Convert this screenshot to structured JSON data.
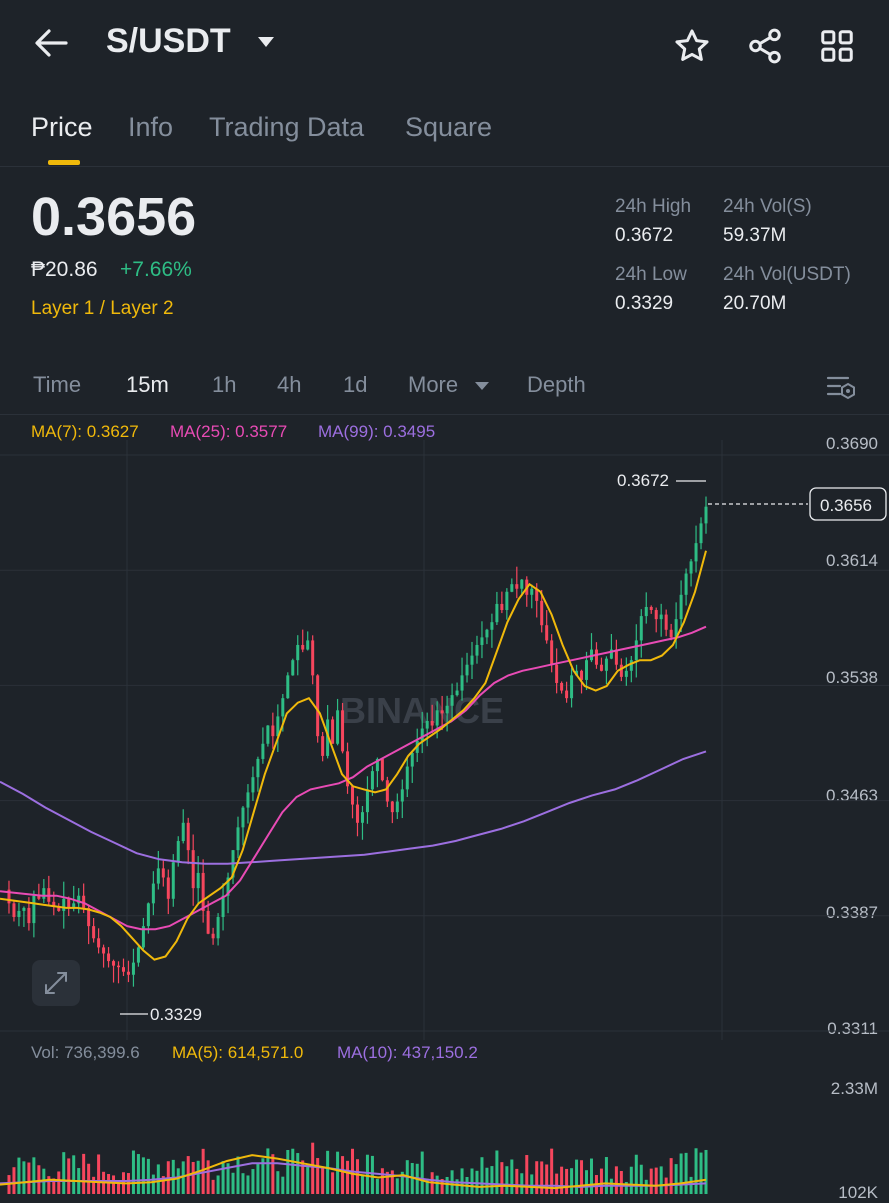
{
  "header": {
    "back_icon": "arrow-left-icon",
    "pair": "S/USDT",
    "dropdown_icon": "caret-down-icon",
    "star_icon": "star-icon",
    "share_icon": "share-icon",
    "grid_icon": "grid-icon"
  },
  "tabs": [
    {
      "label": "Price",
      "active": true
    },
    {
      "label": "Info"
    },
    {
      "label": "Trading Data"
    },
    {
      "label": "Square"
    }
  ],
  "ticker": {
    "last_price": "0.3656",
    "fiat_price": "₱20.86",
    "change_pct": "+7.66%",
    "tag": "Layer 1 / Layer 2",
    "stats": {
      "high_label": "24h High",
      "high_value": "0.3672",
      "vol_s_label": "24h Vol(S)",
      "vol_s_value": "59.37M",
      "low_label": "24h Low",
      "low_value": "0.3329",
      "vol_usdt_label": "24h Vol(USDT)",
      "vol_usdt_value": "20.70M"
    }
  },
  "intervals": {
    "items": [
      "Time",
      "15m",
      "1h",
      "4h",
      "1d",
      "More",
      "Depth"
    ],
    "active": "15m",
    "settings_icon": "chart-settings-icon"
  },
  "indicators": {
    "ma7": "MA(7): 0.3627",
    "ma25": "MA(25): 0.3577",
    "ma99": "MA(99): 0.3495",
    "vol": "Vol: 736,399.6",
    "vol_ma5": "MA(5): 614,571.0",
    "vol_ma10": "MA(10): 437,150.2"
  },
  "watermark": "BINANCE",
  "colors": {
    "up": "#2ebd85",
    "down": "#f6465d",
    "ma7": "#f0b90b",
    "ma25": "#e84bb5",
    "ma99": "#9c6fe0",
    "accent": "#f0b90b"
  },
  "chart_data": {
    "type": "candlestick",
    "interval": "15m",
    "y_axis_ticks": [
      "0.3690",
      "0.3614",
      "0.3538",
      "0.3463",
      "0.3387",
      "0.3311"
    ],
    "ylim": [
      0.3311,
      0.369
    ],
    "last_price_label": "0.3656",
    "high_marker": "0.3672",
    "low_marker": "0.3329",
    "volume_axis_ticks": [
      "2.33M",
      "102K"
    ],
    "volume_ylim": [
      0,
      2330000
    ],
    "price_path": [
      0.3404,
      0.3395,
      0.3386,
      0.339,
      0.3392,
      0.3382,
      0.34,
      0.3398,
      0.3405,
      0.3396,
      0.3393,
      0.339,
      0.3398,
      0.3392,
      0.3395,
      0.34,
      0.3392,
      0.338,
      0.3372,
      0.3366,
      0.3362,
      0.3357,
      0.3354,
      0.3353,
      0.335,
      0.3348,
      0.3356,
      0.3366,
      0.338,
      0.3395,
      0.3408,
      0.3418,
      0.3412,
      0.3398,
      0.3422,
      0.3436,
      0.3448,
      0.343,
      0.3405,
      0.3415,
      0.339,
      0.3375,
      0.3372,
      0.3386,
      0.34,
      0.3412,
      0.343,
      0.3445,
      0.3458,
      0.3468,
      0.3478,
      0.349,
      0.35,
      0.3512,
      0.3505,
      0.3518,
      0.353,
      0.3545,
      0.3555,
      0.3565,
      0.3562,
      0.3568,
      0.3545,
      0.3505,
      0.3492,
      0.3516,
      0.35,
      0.3522,
      0.3495,
      0.3472,
      0.346,
      0.3448,
      0.3455,
      0.347,
      0.3482,
      0.349,
      0.3476,
      0.3462,
      0.3455,
      0.3462,
      0.347,
      0.3485,
      0.3494,
      0.3502,
      0.351,
      0.3515,
      0.3512,
      0.3522,
      0.352,
      0.3525,
      0.3532,
      0.3535,
      0.3545,
      0.3552,
      0.3558,
      0.3565,
      0.357,
      0.3575,
      0.358,
      0.3592,
      0.3588,
      0.36,
      0.3605,
      0.3602,
      0.3608,
      0.3598,
      0.3602,
      0.3594,
      0.3578,
      0.3568,
      0.3552,
      0.354,
      0.3535,
      0.353,
      0.3545,
      0.3548,
      0.3542,
      0.3555,
      0.3562,
      0.3552,
      0.3548,
      0.3556,
      0.3562,
      0.3552,
      0.3544,
      0.3548,
      0.3555,
      0.3568,
      0.3584,
      0.359,
      0.3588,
      0.3582,
      0.3585,
      0.3575,
      0.357,
      0.3582,
      0.3598,
      0.3612,
      0.362,
      0.3632,
      0.3645,
      0.3656
    ],
    "ma7_path": [
      0.3398,
      0.3397,
      0.3396,
      0.3395,
      0.3394,
      0.3393,
      0.3392,
      0.3392,
      0.3391,
      0.3389,
      0.3386,
      0.338,
      0.3372,
      0.3364,
      0.3358,
      0.336,
      0.337,
      0.3385,
      0.3395,
      0.34,
      0.3405,
      0.3412,
      0.343,
      0.3455,
      0.348,
      0.35,
      0.352,
      0.3527,
      0.353,
      0.352,
      0.35,
      0.348,
      0.3472,
      0.347,
      0.3468,
      0.347,
      0.348,
      0.3492,
      0.35,
      0.3505,
      0.351,
      0.3516,
      0.3522,
      0.353,
      0.354,
      0.356,
      0.358,
      0.3595,
      0.3605,
      0.36,
      0.3585,
      0.3565,
      0.3548,
      0.3538,
      0.3535,
      0.3538,
      0.3548,
      0.3552,
      0.3555,
      0.3555,
      0.3558,
      0.3565,
      0.358,
      0.36,
      0.3627
    ],
    "ma25_path": [
      0.3403,
      0.3402,
      0.3401,
      0.34,
      0.34,
      0.3398,
      0.3395,
      0.339,
      0.3385,
      0.338,
      0.3378,
      0.3378,
      0.338,
      0.3385,
      0.339,
      0.3395,
      0.34,
      0.341,
      0.3425,
      0.344,
      0.3455,
      0.3465,
      0.347,
      0.3472,
      0.3474,
      0.3478,
      0.3485,
      0.349,
      0.3495,
      0.35,
      0.3505,
      0.351,
      0.3515,
      0.3522,
      0.3532,
      0.354,
      0.3545,
      0.3548,
      0.355,
      0.3552,
      0.3554,
      0.3556,
      0.3558,
      0.356,
      0.3562,
      0.3564,
      0.3566,
      0.3568,
      0.357,
      0.3573,
      0.3577
    ],
    "ma99_path": [
      0.3475,
      0.3467,
      0.3458,
      0.345,
      0.3442,
      0.3435,
      0.3428,
      0.3424,
      0.3422,
      0.3421,
      0.3421,
      0.3422,
      0.3423,
      0.3424,
      0.3425,
      0.3426,
      0.3427,
      0.3429,
      0.3431,
      0.3433,
      0.3436,
      0.344,
      0.3444,
      0.3449,
      0.3455,
      0.3461,
      0.3466,
      0.347,
      0.3476,
      0.3483,
      0.349,
      0.3495
    ],
    "volume_ma5_path": [
      0.08,
      0.1,
      0.12,
      0.11,
      0.1,
      0.09,
      0.1,
      0.13,
      0.2,
      0.28,
      0.33,
      0.3,
      0.26,
      0.22,
      0.17,
      0.14,
      0.16,
      0.1,
      0.08,
      0.06,
      0.07,
      0.06,
      0.05,
      0.07,
      0.09,
      0.08,
      0.07,
      0.09,
      0.12
    ],
    "volume_ma10_path": [
      0.09,
      0.1,
      0.11,
      0.11,
      0.11,
      0.11,
      0.12,
      0.14,
      0.18,
      0.22,
      0.26,
      0.26,
      0.24,
      0.22,
      0.19,
      0.17,
      0.15,
      0.12,
      0.1,
      0.09,
      0.08,
      0.07,
      0.07,
      0.06,
      0.07,
      0.07,
      0.07,
      0.08,
      0.09
    ]
  }
}
